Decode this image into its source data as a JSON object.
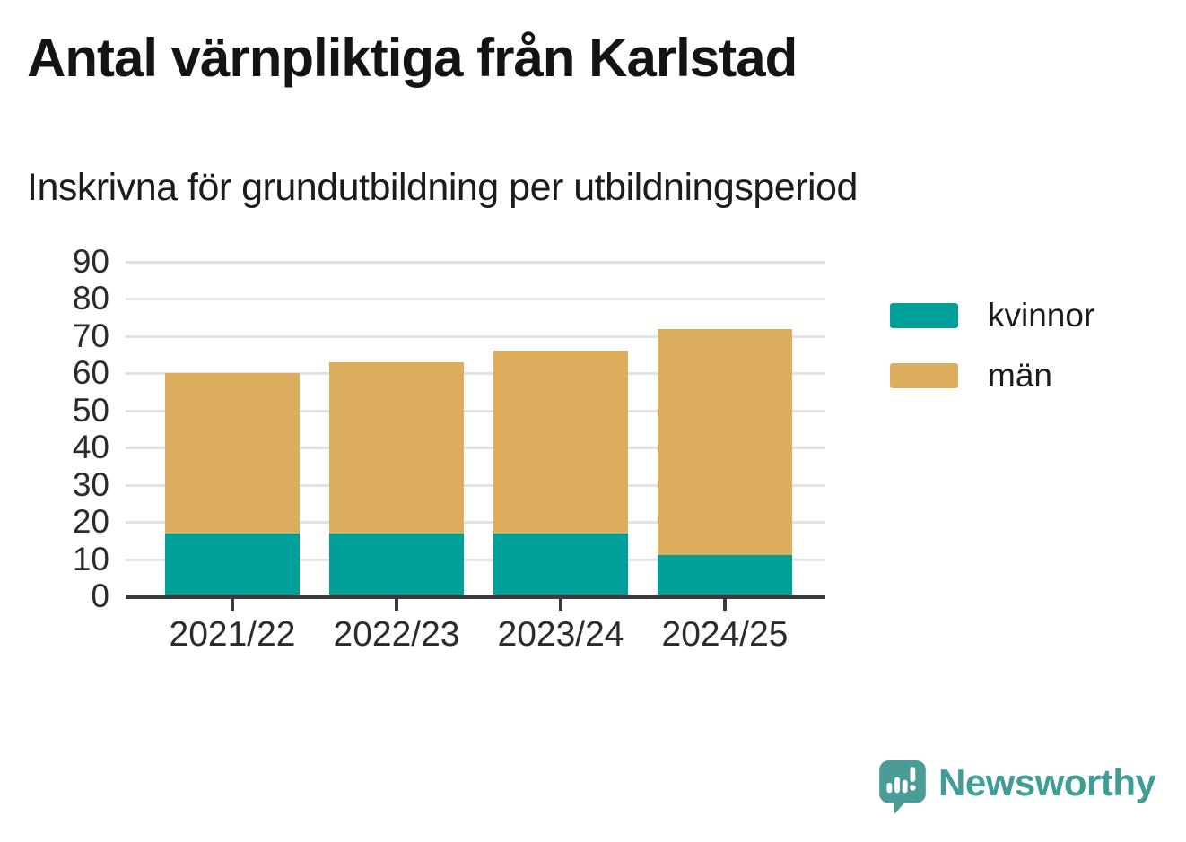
{
  "header": {
    "title": "Antal värnpliktiga från Karlstad",
    "subtitle": "Inskrivna för grundutbildning per utbildningsperiod"
  },
  "chart_data": {
    "type": "bar",
    "stacked": true,
    "title": "Antal värnpliktiga från Karlstad",
    "subtitle": "Inskrivna för grundutbildning per utbildningsperiod",
    "categories": [
      "2021/22",
      "2022/23",
      "2023/24",
      "2024/25"
    ],
    "series": [
      {
        "name": "kvinnor",
        "color": "#00A09A",
        "values": [
          17,
          17,
          17,
          11
        ]
      },
      {
        "name": "män",
        "color": "#DBAD5D",
        "values": [
          43,
          46,
          49,
          61
        ]
      }
    ],
    "stacked_totals": [
      60,
      63,
      66,
      72
    ],
    "xlabel": "",
    "ylabel": "",
    "ylim": [
      0,
      90
    ],
    "yticks": [
      0,
      10,
      20,
      30,
      40,
      50,
      60,
      70,
      80,
      90
    ],
    "grid": true,
    "legend_position": "right",
    "legend_entries": [
      "kvinnor",
      "män"
    ]
  },
  "footer": {
    "brand": "Newsworthy",
    "logo_icon": "newsworthy-logo-icon",
    "brand_color": "#3F9C96",
    "logo_fill": "#4A9D96"
  },
  "colors": {
    "series_kvinnor": "#00A09A",
    "series_man": "#DBAD5D",
    "grid": "#E2E2E2",
    "axis": "#3A3A3A",
    "text": "#1C1C1C",
    "background": "#FFFFFF"
  }
}
